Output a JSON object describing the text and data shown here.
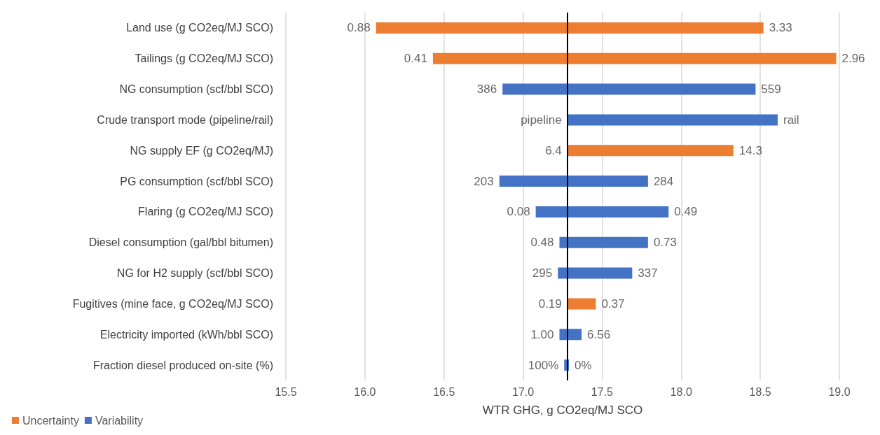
{
  "chart_data": {
    "type": "bar",
    "orientation": "horizontal",
    "xlabel": "WTR GHG, g CO2eq/MJ SCO",
    "categories": [
      "Land use (g CO2eq/MJ SCO)",
      "Tailings (g CO2eq/MJ SCO)",
      "NG consumption (scf/bbl SCO)",
      "Crude transport mode (pipeline/rail)",
      "NG supply EF (g CO2eq/MJ)",
      "PG consumption (scf/bbl SCO)",
      "Flaring (g CO2eq/MJ SCO)",
      "Diesel consumption (gal/bbl bitumen)",
      "NG for H2 supply (scf/bbl SCO)",
      "Fugitives (mine face, g CO2eq/MJ SCO)",
      "Electricity imported (kWh/bbl SCO)",
      "Fraction diesel produced on-site (%)"
    ],
    "series": [
      {
        "name": "Uncertainty",
        "color": "#ed7d31",
        "base": [
          16.07,
          16.43,
          null,
          null,
          17.28,
          null,
          null,
          null,
          null,
          17.28,
          null,
          null
        ],
        "values": [
          2.45,
          2.55,
          null,
          null,
          1.05,
          null,
          null,
          null,
          null,
          0.18,
          null,
          null
        ]
      },
      {
        "name": "Variability",
        "color": "#4472c4",
        "base": [
          null,
          null,
          16.87,
          17.28,
          null,
          16.85,
          17.08,
          17.23,
          17.22,
          null,
          17.23,
          17.26
        ],
        "values": [
          null,
          null,
          1.6,
          1.33,
          null,
          0.94,
          0.84,
          0.56,
          0.47,
          null,
          0.14,
          0.03
        ]
      }
    ],
    "xlim": [
      15.5,
      19.0
    ],
    "xticks": [
      {
        "value": 15.5,
        "label": "15.5"
      },
      {
        "value": 16,
        "label": "16.0"
      },
      {
        "value": 16.5,
        "label": "16.5"
      },
      {
        "value": 17,
        "label": "17.0"
      },
      {
        "value": 17.5,
        "label": "17.5"
      },
      {
        "value": 18,
        "label": "18.0"
      },
      {
        "value": 18.5,
        "label": "18.5"
      },
      {
        "value": 19,
        "label": "19.0"
      }
    ],
    "grid": "x",
    "legend": "bottom left",
    "ref_lines": [
      {
        "axis": "x",
        "value": 17.28,
        "color": "#000000"
      }
    ],
    "annotations": [
      {
        "text": "0.88",
        "x": 16.07,
        "y": "Land use (g CO2eq/MJ SCO)"
      },
      {
        "text": "3.33",
        "x": 18.52,
        "y": "Land use (g CO2eq/MJ SCO)"
      },
      {
        "text": "0.41",
        "x": 16.43,
        "y": "Tailings (g CO2eq/MJ SCO)"
      },
      {
        "text": "2.96",
        "x": 18.98,
        "y": "Tailings (g CO2eq/MJ SCO)"
      },
      {
        "text": "386",
        "x": 16.87,
        "y": "NG consumption (scf/bbl SCO)"
      },
      {
        "text": "559",
        "x": 18.47,
        "y": "NG consumption (scf/bbl SCO)"
      },
      {
        "text": "pipeline",
        "x": 17.28,
        "y": "Crude transport mode (pipeline/rail)"
      },
      {
        "text": "rail",
        "x": 18.61,
        "y": "Crude transport mode (pipeline/rail)"
      },
      {
        "text": "6.4",
        "x": 17.28,
        "y": "NG supply EF (g CO2eq/MJ)"
      },
      {
        "text": "14.3",
        "x": 18.33,
        "y": "NG supply EF (g CO2eq/MJ)"
      },
      {
        "text": "203",
        "x": 16.85,
        "y": "PG consumption (scf/bbl SCO)"
      },
      {
        "text": "284",
        "x": 17.79,
        "y": "PG consumption (scf/bbl SCO)"
      },
      {
        "text": "0.08",
        "x": 17.08,
        "y": "Flaring (g CO2eq/MJ SCO)"
      },
      {
        "text": "0.49",
        "x": 17.92,
        "y": "Flaring (g CO2eq/MJ SCO)"
      },
      {
        "text": "0.48",
        "x": 17.23,
        "y": "Diesel consumption (gal/bbl bitumen)"
      },
      {
        "text": "0.73",
        "x": 17.79,
        "y": "Diesel consumption (gal/bbl bitumen)"
      },
      {
        "text": "295",
        "x": 17.22,
        "y": "NG for H2 supply (scf/bbl SCO)"
      },
      {
        "text": "337",
        "x": 17.69,
        "y": "NG for H2 supply (scf/bbl SCO)"
      },
      {
        "text": "0.19",
        "x": 17.28,
        "y": "Fugitives (mine face, g CO2eq/MJ SCO)"
      },
      {
        "text": "0.37",
        "x": 17.46,
        "y": "Fugitives (mine face, g CO2eq/MJ SCO)"
      },
      {
        "text": "1.00",
        "x": 17.23,
        "y": "Electricity imported (kWh/bbl SCO)"
      },
      {
        "text": "6.56",
        "x": 17.37,
        "y": "Electricity imported (kWh/bbl SCO)"
      },
      {
        "text": "100%",
        "x": 17.26,
        "y": "Fraction diesel produced on-site (%)"
      },
      {
        "text": "0%",
        "x": 17.29,
        "y": "Fraction diesel produced on-site (%)"
      }
    ]
  }
}
